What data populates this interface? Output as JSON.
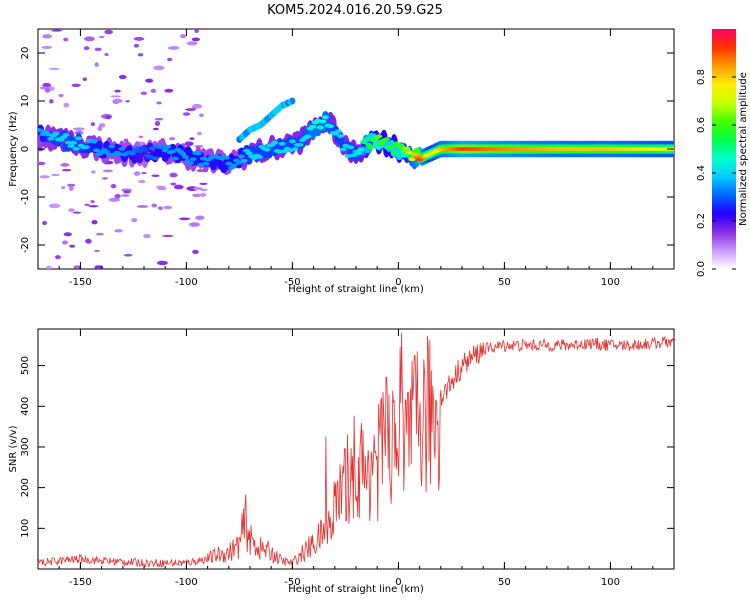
{
  "title": "KOM5.2024.016.20.59.G25",
  "chart_data": [
    {
      "type": "heatmap",
      "xlabel": "Height of straight line (km)",
      "ylabel": "Frequency (Hz)",
      "xlim": [
        -170,
        130
      ],
      "ylim": [
        -25,
        25
      ],
      "xticks": [
        -150,
        -100,
        -50,
        0,
        50,
        100
      ],
      "yticks": [
        -20,
        -10,
        0,
        10,
        20
      ],
      "colorbar": {
        "label": "Normalized spectral amplitude",
        "range": [
          0,
          1
        ],
        "ticks": [
          0.0,
          0.2,
          0.4,
          0.6,
          0.8
        ],
        "colors": [
          "#ffffff",
          "#cc99ff",
          "#8a2be2",
          "#2200ff",
          "#0066ff",
          "#00ccff",
          "#00ffcc",
          "#00ff44",
          "#44ff00",
          "#ccff00",
          "#ffee00",
          "#ff9900",
          "#ff3300",
          "#ff0066"
        ]
      },
      "ridge": {
        "x": [
          -170,
          -160,
          -150,
          -140,
          -130,
          -120,
          -110,
          -100,
          -90,
          -80,
          -75,
          -70,
          -60,
          -50,
          -45,
          -40,
          -35,
          -30,
          -25,
          -20,
          -15,
          -10,
          -5,
          0,
          5,
          10,
          15,
          20,
          30,
          50,
          80,
          100,
          130
        ],
        "y": [
          3,
          2,
          1,
          0,
          -1,
          -1,
          -0.5,
          -1.5,
          -2.5,
          -3,
          -2,
          -1,
          0,
          1,
          2,
          4,
          6,
          4,
          0,
          -1,
          1,
          2,
          1,
          0,
          -1,
          -2,
          -1,
          0,
          0,
          0,
          0,
          0,
          0
        ],
        "amplitude": [
          0.3,
          0.35,
          0.35,
          0.3,
          0.3,
          0.25,
          0.3,
          0.3,
          0.3,
          0.3,
          0.3,
          0.35,
          0.35,
          0.35,
          0.35,
          0.4,
          0.4,
          0.35,
          0.35,
          0.35,
          0.45,
          0.55,
          0.5,
          0.5,
          0.6,
          0.8,
          0.6,
          0.7,
          0.8,
          0.75,
          0.7,
          0.7,
          0.65
        ]
      },
      "upper_branch": {
        "x": [
          -75,
          -70,
          -65,
          -60,
          -55,
          -50
        ],
        "y": [
          2,
          4,
          5,
          7,
          9,
          10
        ]
      }
    },
    {
      "type": "line",
      "xlabel": "Height of straight line (km)",
      "ylabel": "SNR (v/v)",
      "xlim": [
        -170,
        130
      ],
      "ylim": [
        0,
        590
      ],
      "xticks": [
        -150,
        -100,
        -50,
        0,
        50,
        100
      ],
      "yticks": [
        100,
        200,
        300,
        400,
        500
      ],
      "color": "#e83030",
      "series": [
        {
          "x": [
            -170,
            -160,
            -150,
            -140,
            -130,
            -120,
            -110,
            -100,
            -95,
            -90,
            -85,
            -80,
            -75,
            -72,
            -70,
            -65,
            -60,
            -55,
            -50,
            -45,
            -40,
            -35,
            -30,
            -25,
            -22,
            -20,
            -17,
            -15,
            -12,
            -10,
            -7,
            -5,
            -2,
            0,
            5,
            10,
            15,
            20,
            25,
            30,
            35,
            40,
            50,
            60,
            70,
            80,
            90,
            100,
            110,
            120,
            130
          ],
          "y": [
            15,
            20,
            25,
            20,
            18,
            15,
            15,
            15,
            20,
            25,
            35,
            40,
            60,
            120,
            70,
            50,
            40,
            20,
            15,
            40,
            60,
            90,
            150,
            200,
            260,
            250,
            240,
            220,
            300,
            250,
            320,
            300,
            340,
            360,
            330,
            360,
            380,
            420,
            460,
            500,
            520,
            540,
            550,
            550,
            550,
            550,
            555,
            550,
            550,
            555,
            560
          ]
        }
      ]
    }
  ]
}
